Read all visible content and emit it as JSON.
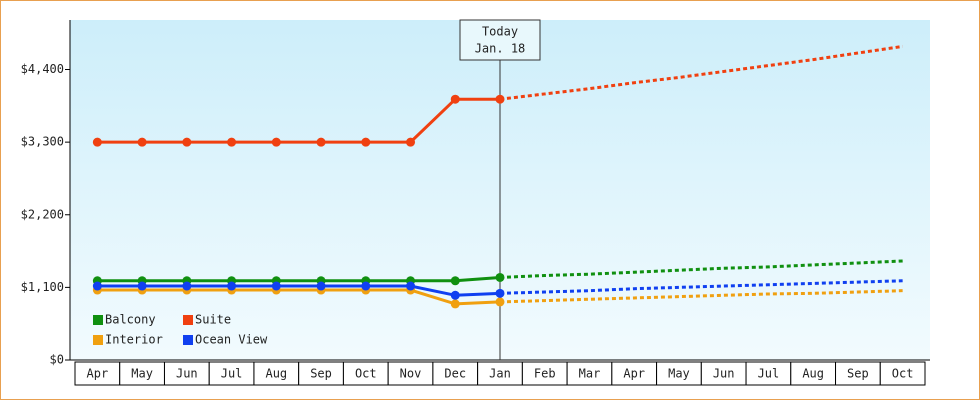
{
  "chart_data": {
    "type": "line",
    "categories": [
      "Apr",
      "May",
      "Jun",
      "Jul",
      "Aug",
      "Sep",
      "Oct",
      "Nov",
      "Dec",
      "Jan",
      "Feb",
      "Mar",
      "Apr",
      "May",
      "Jun",
      "Jul",
      "Aug",
      "Sep",
      "Oct"
    ],
    "ylim": [
      0,
      5150
    ],
    "yticks": [
      {
        "value": 0,
        "label": "$0"
      },
      {
        "value": 1100,
        "label": "$1,100"
      },
      {
        "value": 2200,
        "label": "$2,200"
      },
      {
        "value": 3300,
        "label": "$3,300"
      },
      {
        "value": 4400,
        "label": "$4,400"
      }
    ],
    "annotation": {
      "lines": [
        "Today",
        "Jan. 18"
      ],
      "category": "Jan"
    },
    "series": [
      {
        "name": "Balcony",
        "color": "#109010",
        "values": [
          1200,
          1200,
          1200,
          1200,
          1200,
          1200,
          1200,
          1200,
          1200,
          1250,
          null,
          null,
          null,
          null,
          null,
          null,
          null,
          null,
          null
        ],
        "forecast": [
          null,
          null,
          null,
          null,
          null,
          null,
          null,
          null,
          null,
          1250,
          1280,
          1300,
          1330,
          1360,
          1390,
          1410,
          1440,
          1470,
          1500
        ]
      },
      {
        "name": "Suite",
        "color": "#f04010",
        "values": [
          3300,
          3300,
          3300,
          3300,
          3300,
          3300,
          3300,
          3300,
          3950,
          3950,
          null,
          null,
          null,
          null,
          null,
          null,
          null,
          null,
          null
        ],
        "forecast": [
          null,
          null,
          null,
          null,
          null,
          null,
          null,
          null,
          null,
          3950,
          4030,
          4110,
          4200,
          4280,
          4370,
          4460,
          4550,
          4650,
          4750
        ]
      },
      {
        "name": "Interior",
        "color": "#f0a010",
        "values": [
          1060,
          1060,
          1060,
          1060,
          1060,
          1060,
          1060,
          1060,
          850,
          880,
          null,
          null,
          null,
          null,
          null,
          null,
          null,
          null,
          null
        ],
        "forecast": [
          null,
          null,
          null,
          null,
          null,
          null,
          null,
          null,
          null,
          880,
          900,
          920,
          940,
          960,
          980,
          1000,
          1010,
          1030,
          1050
        ]
      },
      {
        "name": "Ocean View",
        "color": "#1040f0",
        "values": [
          1120,
          1120,
          1120,
          1120,
          1120,
          1120,
          1120,
          1120,
          980,
          1010,
          null,
          null,
          null,
          null,
          null,
          null,
          null,
          null,
          null
        ],
        "forecast": [
          null,
          null,
          null,
          null,
          null,
          null,
          null,
          null,
          null,
          1010,
          1030,
          1050,
          1080,
          1100,
          1120,
          1140,
          1160,
          1180,
          1200
        ]
      }
    ]
  }
}
